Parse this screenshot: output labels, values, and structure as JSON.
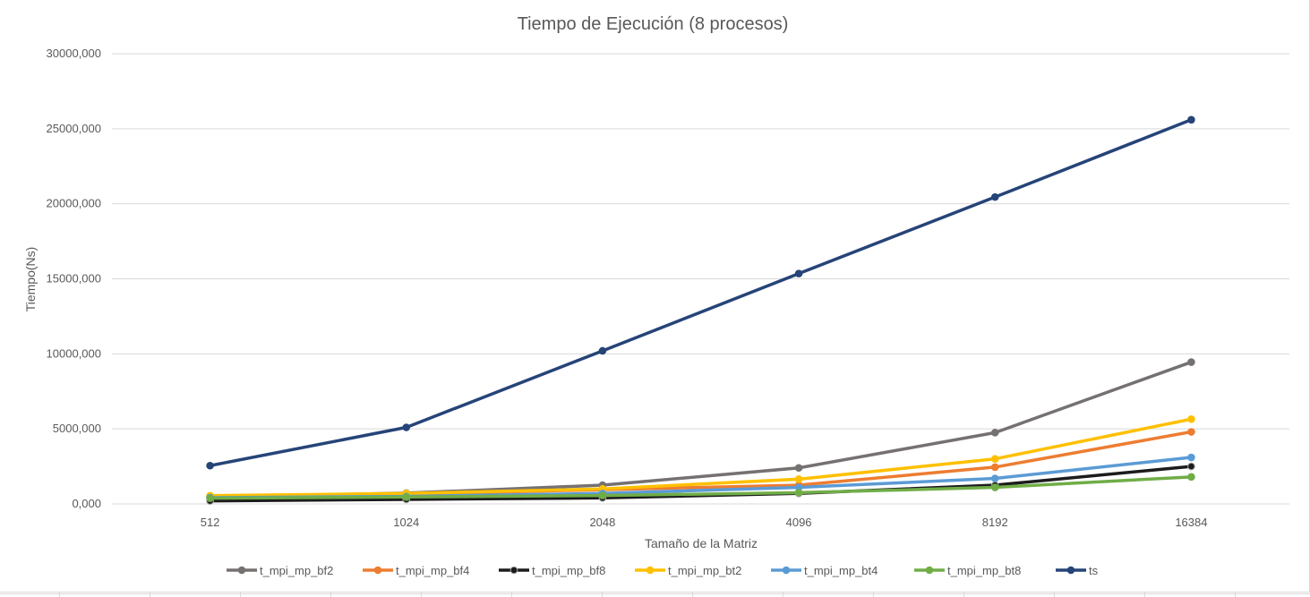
{
  "chart_data": {
    "type": "line",
    "title": "Tiempo de Ejecución (8 procesos)",
    "xlabel": "Tamaño de la Matriz",
    "ylabel": "Tiempo(Ns)",
    "categories": [
      "512",
      "1024",
      "2048",
      "4096",
      "8192",
      "16384"
    ],
    "ylim": [
      0,
      30000000
    ],
    "yticks": [
      0,
      5000000,
      10000000,
      15000000,
      20000000,
      25000000,
      30000000
    ],
    "ytick_labels": [
      "0,000",
      "5000,000",
      "10000,000",
      "15000,000",
      "20000,000",
      "25000,000",
      "30000,000"
    ],
    "grid": true,
    "legend_position": "bottom",
    "series": [
      {
        "name": "t_mpi_mp_bf2",
        "color": "#767171",
        "values": [
          450000,
          720000,
          1250000,
          2400000,
          4750000,
          9450000
        ]
      },
      {
        "name": "t_mpi_mp_bf4",
        "color": "#ed7d31",
        "values": [
          420000,
          650000,
          950000,
          1250000,
          2450000,
          4800000
        ]
      },
      {
        "name": "t_mpi_mp_bf8",
        "color": "#1c1c1c",
        "values": [
          200000,
          300000,
          400000,
          700000,
          1250000,
          2500000
        ]
      },
      {
        "name": "t_mpi_mp_bt2",
        "color": "#ffc000",
        "values": [
          550000,
          700000,
          1000000,
          1650000,
          3000000,
          5650000
        ]
      },
      {
        "name": "t_mpi_mp_bt4",
        "color": "#5b9bd5",
        "values": [
          420000,
          500000,
          700000,
          1100000,
          1700000,
          3100000
        ]
      },
      {
        "name": "t_mpi_mp_bt8",
        "color": "#70ad47",
        "values": [
          380000,
          460000,
          560000,
          750000,
          1100000,
          1800000
        ]
      },
      {
        "name": "ts",
        "color": "#264478",
        "values": [
          2550000,
          5100000,
          10200000,
          15350000,
          20450000,
          25600000
        ]
      }
    ]
  }
}
